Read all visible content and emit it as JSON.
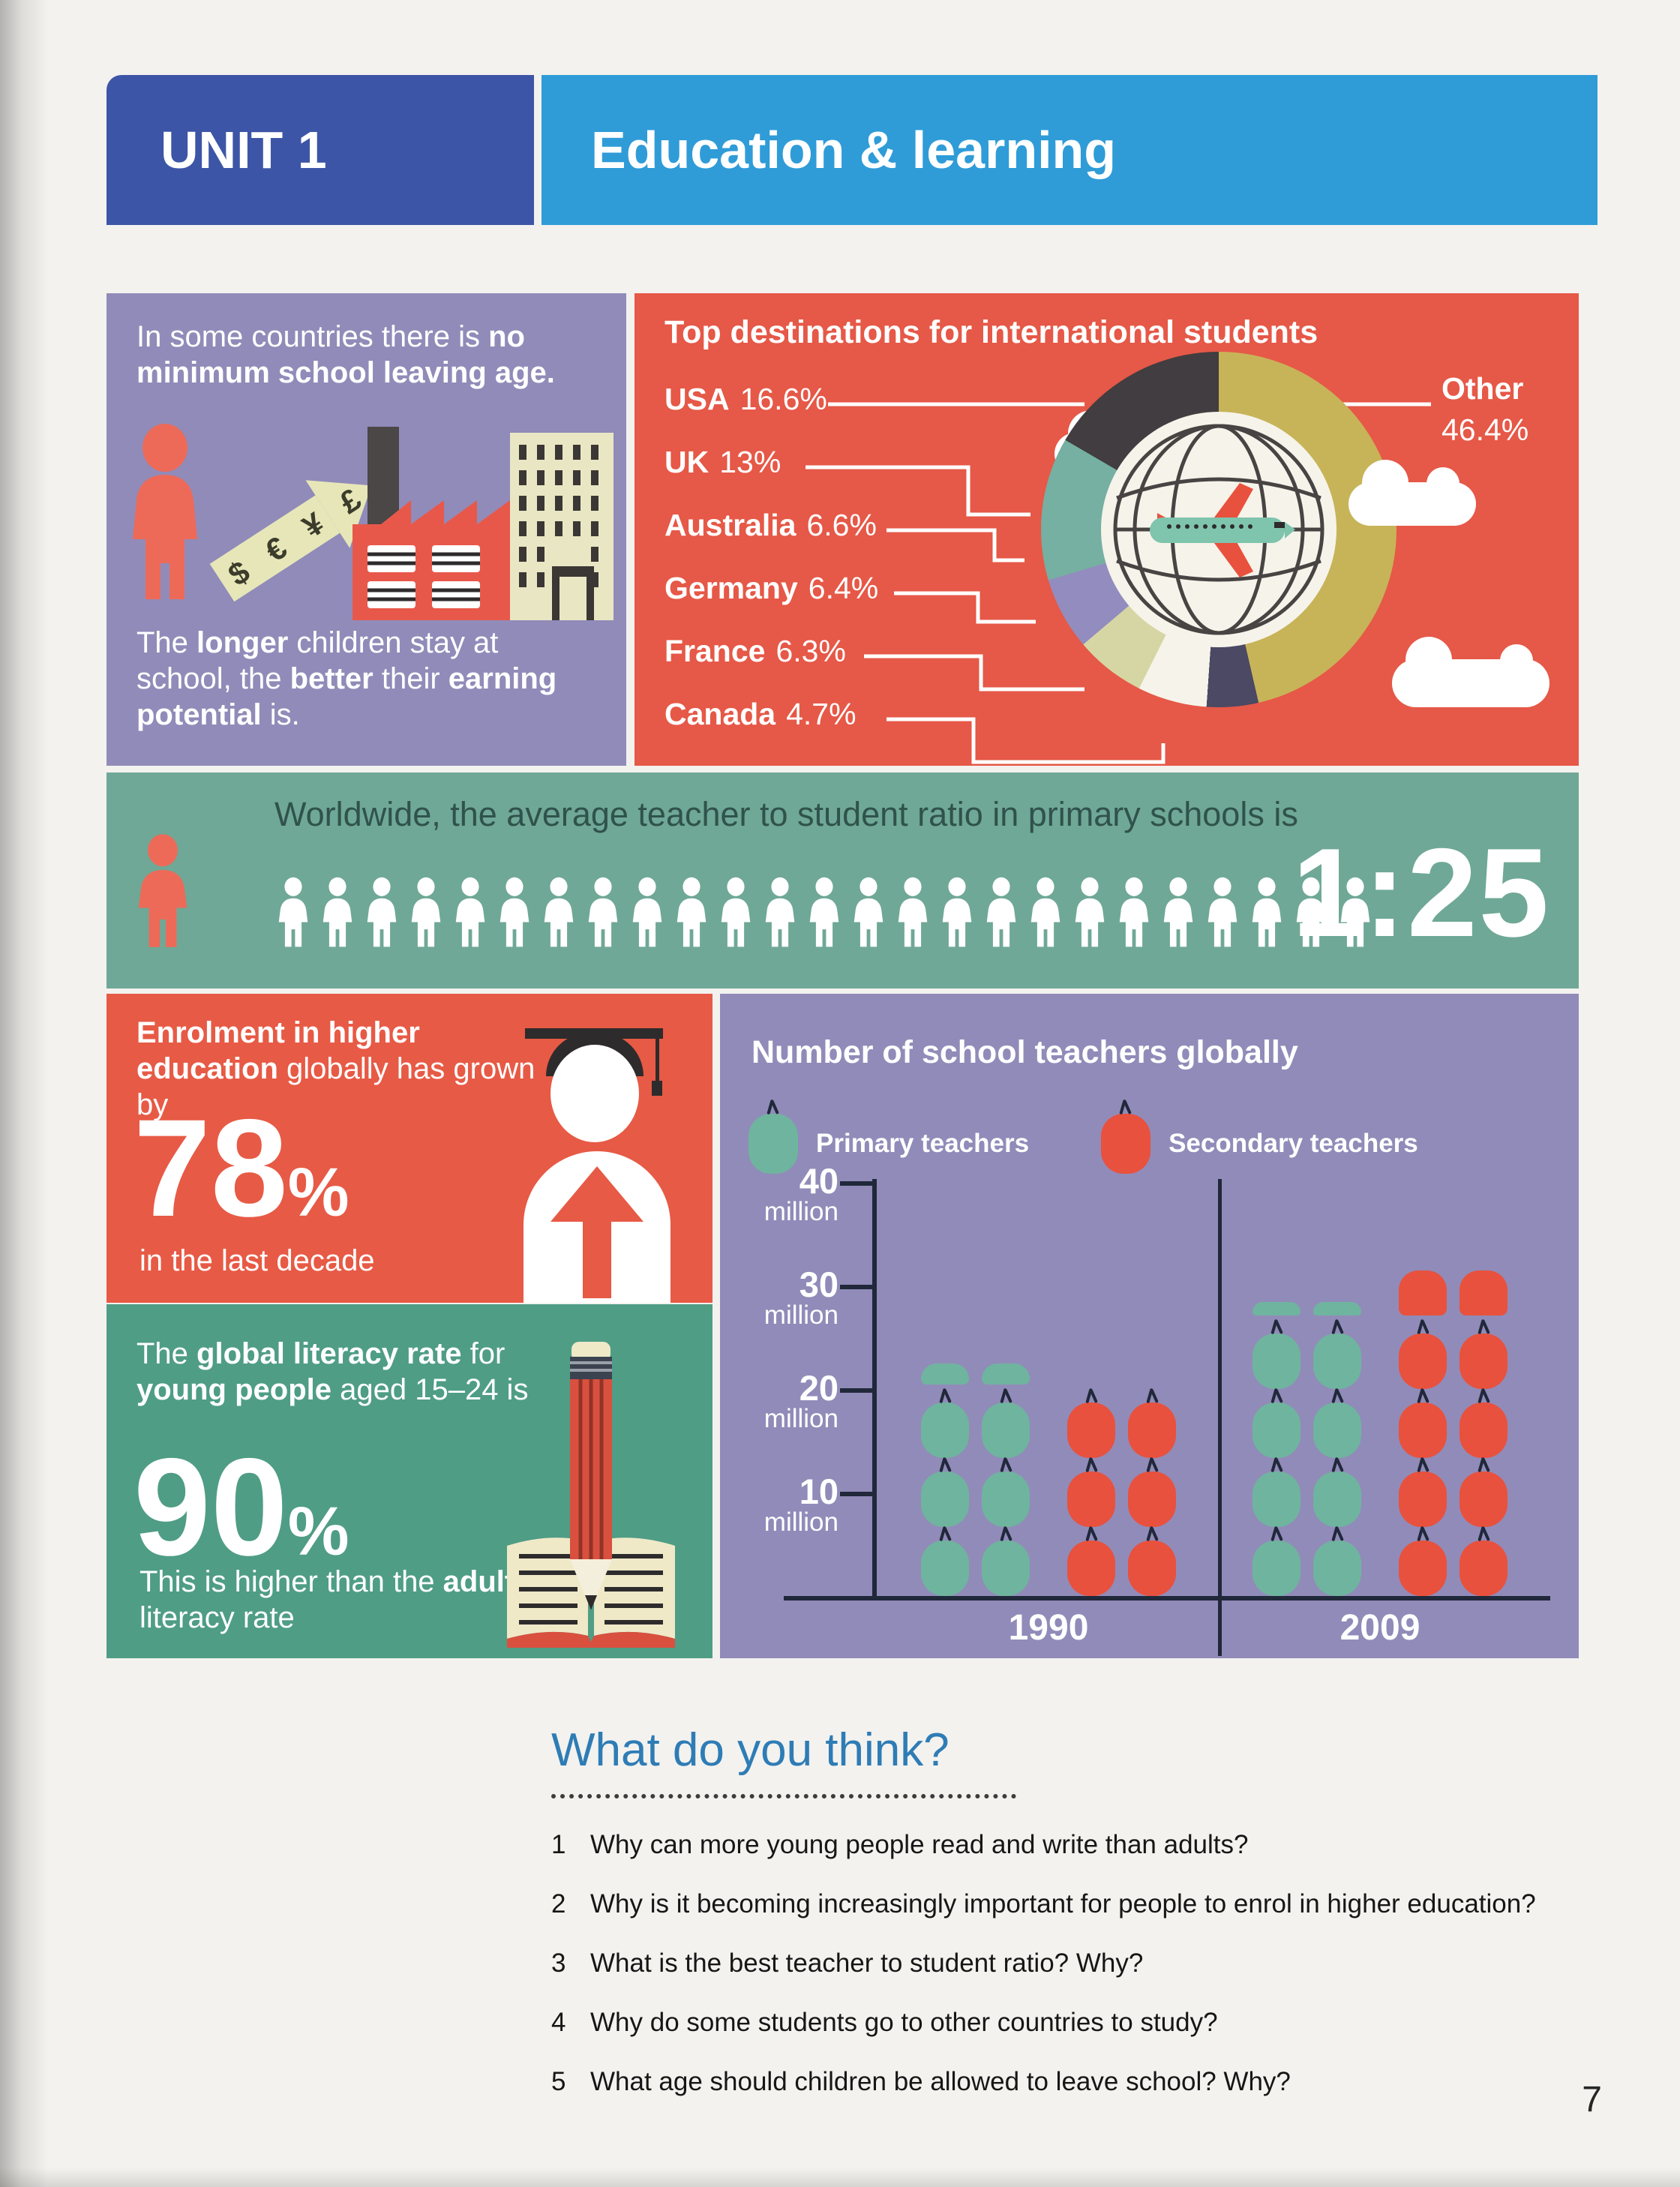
{
  "page": {
    "number": "7"
  },
  "header": {
    "unit_label": "UNIT 1",
    "title": "Education & learning"
  },
  "colors": {
    "header_dark": "#3d55a6",
    "header_light": "#2f9cd8",
    "purple_box": "#918bb9",
    "red_box": "#e75a45",
    "banner_green": "#6fa896",
    "literacy_green": "#4f9d85",
    "apple_green": "#6fb49e",
    "apple_red": "#e8513d",
    "axis": "#20283a",
    "title_blue": "#2e7cb5",
    "donut_usa": "#413d40",
    "donut_uk": "#75b0a2",
    "donut_australia": "#938cbe",
    "donut_germany": "#d6d6a4",
    "donut_france": "#f6f3ea",
    "donut_canada": "#4b4963",
    "donut_other": "#c7b458"
  },
  "leaving_age": {
    "intro": [
      [
        "In some countries there is ",
        false
      ],
      [
        "no minimum school leaving age.",
        true
      ]
    ],
    "currencies": "$ € ¥ £",
    "outro": [
      [
        "The ",
        false
      ],
      [
        "longer",
        true
      ],
      [
        " children stay at school, the ",
        false
      ],
      [
        "better",
        true
      ],
      [
        " their ",
        false
      ],
      [
        "earning potential",
        true
      ],
      [
        " is.",
        false
      ]
    ]
  },
  "destinations": {
    "title": "Top destinations for international students",
    "items": [
      {
        "country": "USA",
        "value": "16.6%"
      },
      {
        "country": "UK",
        "value": "13%"
      },
      {
        "country": "Australia",
        "value": "6.6%"
      },
      {
        "country": "Germany",
        "value": "6.4%"
      },
      {
        "country": "France",
        "value": "6.3%"
      },
      {
        "country": "Canada",
        "value": "4.7%"
      }
    ],
    "other_label": "Other",
    "other_value": "46.4%"
  },
  "ratio_banner": {
    "text": "Worldwide, the average teacher to student ratio in primary schools is",
    "ratio": "1:25"
  },
  "enrolment": {
    "lines": [
      [
        "Enrolment in higher education",
        true
      ],
      [
        " globally has grown by",
        false
      ]
    ],
    "big": "78",
    "pct": "%",
    "tail": "in the last decade"
  },
  "literacy": {
    "lines": [
      [
        "The ",
        false
      ],
      [
        "global literacy rate",
        true
      ],
      [
        " for ",
        false
      ],
      [
        "young people",
        true
      ],
      [
        " aged 15–24 is",
        false
      ]
    ],
    "big": "90",
    "pct": "%",
    "tail": [
      [
        "This is higher than the ",
        false
      ],
      [
        "adult",
        true
      ],
      [
        " literacy rate",
        false
      ]
    ]
  },
  "questions": {
    "title": "What do you think?",
    "items": [
      "Why can more young people read and write than adults?",
      "Why is it becoming increasingly important for people to enrol in higher education?",
      "What is the best teacher to student ratio? Why?",
      "Why do some students go to other countries to study?",
      "What age should children be allowed to leave school? Why?"
    ]
  },
  "chart_data": [
    {
      "type": "pie",
      "title": "Top destinations for international students",
      "labels": [
        "USA",
        "UK",
        "Australia",
        "Germany",
        "France",
        "Canada",
        "Other"
      ],
      "values": [
        16.6,
        13,
        6.6,
        6.4,
        6.3,
        4.7,
        46.4
      ],
      "unit": "%",
      "render_order": [
        "Other",
        "Canada",
        "France",
        "Germany",
        "Australia",
        "UK",
        "USA"
      ],
      "style": "donut with globe-and-plane center, callout labels"
    },
    {
      "type": "bar",
      "title": "Number of school teachers globally",
      "categories": [
        "1990",
        "2009"
      ],
      "series": [
        {
          "name": "Primary teachers",
          "values": [
            22,
            28
          ]
        },
        {
          "name": "Secondary teachers",
          "values": [
            20,
            31
          ]
        }
      ],
      "ylabel": "million",
      "ylim": [
        0,
        40
      ],
      "yticks": [
        10,
        20,
        30,
        40
      ],
      "style": "pictograph, stacked apples, one apple ≈ 6.67 million, two icon columns per series"
    }
  ]
}
